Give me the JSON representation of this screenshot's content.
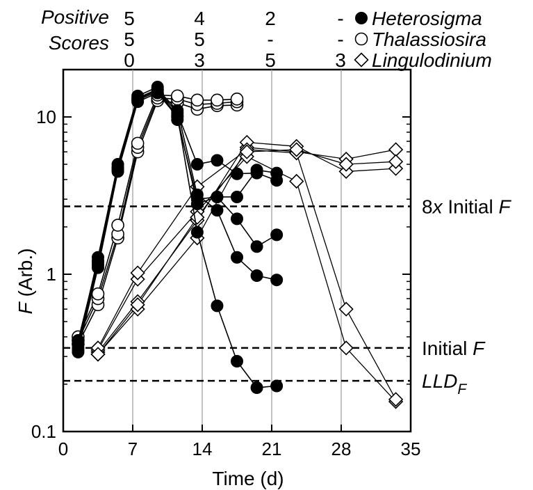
{
  "chart_data": {
    "type": "scatter",
    "y_scale": "log",
    "xlabel": "Time (d)",
    "ylabel": {
      "italic_part": "F",
      "rest": " (Arb.)"
    },
    "xlim": [
      0,
      35
    ],
    "ylim": [
      0.1,
      20
    ],
    "x_ticks": [
      0,
      7,
      14,
      21,
      28,
      35
    ],
    "y_ticks": [
      0.1,
      1,
      10
    ],
    "y_tick_labels": [
      "0.1",
      "1",
      "10"
    ],
    "vertical_gridlines": [
      7,
      14,
      21,
      28
    ],
    "reference_lines": [
      {
        "value": 2.7,
        "label_parts": [
          "8",
          "x",
          " Initial ",
          "F"
        ]
      },
      {
        "value": 0.34,
        "label_parts": [
          "Initial ",
          "F"
        ]
      },
      {
        "value": 0.21,
        "label_parts": [
          "LLD",
          "F"
        ]
      }
    ],
    "scores_header": [
      "Positive",
      "Scores"
    ],
    "legend": [
      {
        "name": "Heterosigma",
        "marker": "filled-circle",
        "scores": [
          "5",
          "4",
          "2",
          "-"
        ]
      },
      {
        "name": "Thalassiosira",
        "marker": "open-circle",
        "scores": [
          "5",
          "5",
          "-",
          "-"
        ]
      },
      {
        "name": "Lingulodinium",
        "marker": "open-diamond",
        "scores": [
          "0",
          "3",
          "5",
          "3"
        ]
      }
    ],
    "series": [
      {
        "name": "Heterosigma",
        "marker": "filled-circle",
        "replicates": [
          [
            [
              1.5,
              0.32
            ],
            [
              3.5,
              1.15
            ],
            [
              5.5,
              4.6
            ],
            [
              7.5,
              12.8
            ],
            [
              9.5,
              14.5
            ],
            [
              11.5,
              10.2
            ],
            [
              13.5,
              1.85
            ],
            [
              15.5,
              0.63
            ],
            [
              17.5,
              0.28
            ],
            [
              19.5,
              0.19
            ],
            [
              21.5,
              0.195
            ]
          ],
          [
            [
              1.5,
              0.34
            ],
            [
              3.5,
              1.2
            ],
            [
              5.5,
              4.8
            ],
            [
              7.5,
              13.2
            ],
            [
              9.5,
              15.0
            ],
            [
              11.5,
              11.0
            ],
            [
              13.5,
              3.2
            ],
            [
              15.5,
              2.55
            ],
            [
              17.5,
              1.28
            ],
            [
              19.5,
              0.98
            ],
            [
              21.5,
              0.92
            ]
          ],
          [
            [
              1.5,
              0.36
            ],
            [
              3.5,
              1.28
            ],
            [
              5.5,
              5.0
            ],
            [
              7.5,
              13.6
            ],
            [
              9.5,
              15.5
            ],
            [
              11.5,
              9.6
            ],
            [
              13.5,
              3.0
            ],
            [
              15.5,
              3.1
            ],
            [
              17.5,
              2.25
            ],
            [
              19.5,
              1.5
            ],
            [
              21.5,
              1.78
            ]
          ],
          [
            [
              1.5,
              0.38
            ],
            [
              3.5,
              1.22
            ],
            [
              5.5,
              4.7
            ],
            [
              7.5,
              13.0
            ],
            [
              9.5,
              14.8
            ],
            [
              11.5,
              10.6
            ],
            [
              13.5,
              5.0
            ],
            [
              15.5,
              5.3
            ],
            [
              17.5,
              4.35
            ],
            [
              19.5,
              4.4
            ],
            [
              21.5,
              3.95
            ]
          ],
          [
            [
              1.5,
              0.33
            ],
            [
              3.5,
              1.1
            ],
            [
              5.5,
              4.5
            ],
            [
              7.5,
              12.5
            ],
            [
              9.5,
              14.2
            ],
            [
              11.5,
              10.0
            ],
            [
              13.5,
              2.8
            ],
            [
              15.5,
              3.1
            ],
            [
              17.5,
              3.1
            ],
            [
              19.5,
              4.6
            ],
            [
              21.5,
              4.4
            ]
          ]
        ]
      },
      {
        "name": "Thalassiosira",
        "marker": "open-circle",
        "replicates": [
          [
            [
              1.5,
              0.36
            ],
            [
              3.5,
              0.64
            ],
            [
              5.5,
              1.7
            ],
            [
              7.5,
              6.0
            ],
            [
              9.5,
              12.7
            ],
            [
              11.5,
              12.3
            ],
            [
              13.5,
              11.2
            ],
            [
              15.5,
              11.8
            ],
            [
              17.5,
              11.9
            ]
          ],
          [
            [
              1.5,
              0.38
            ],
            [
              3.5,
              0.7
            ],
            [
              5.5,
              1.8
            ],
            [
              7.5,
              6.4
            ],
            [
              9.5,
              13.2
            ],
            [
              11.5,
              13.0
            ],
            [
              13.5,
              12.0
            ],
            [
              15.5,
              12.2
            ],
            [
              17.5,
              12.5
            ]
          ],
          [
            [
              1.5,
              0.4
            ],
            [
              3.5,
              0.75
            ],
            [
              5.5,
              2.05
            ],
            [
              7.5,
              6.8
            ],
            [
              9.5,
              13.8
            ],
            [
              11.5,
              13.6
            ],
            [
              13.5,
              12.8
            ],
            [
              15.5,
              12.8
            ],
            [
              17.5,
              13.0
            ]
          ]
        ]
      },
      {
        "name": "Lingulodinium",
        "marker": "open-diamond",
        "replicates": [
          [
            [
              3.5,
              0.31
            ],
            [
              7.5,
              0.6
            ],
            [
              13.5,
              1.7
            ],
            [
              18.5,
              6.4
            ],
            [
              23.5,
              6.0
            ],
            [
              28.5,
              5.4
            ],
            [
              33.5,
              6.2
            ]
          ],
          [
            [
              3.5,
              0.32
            ],
            [
              7.5,
              0.67
            ],
            [
              13.5,
              2.2
            ],
            [
              18.5,
              6.9
            ],
            [
              23.5,
              6.5
            ],
            [
              28.5,
              4.5
            ],
            [
              33.5,
              4.7
            ]
          ],
          [
            [
              3.5,
              0.33
            ],
            [
              7.5,
              0.93
            ],
            [
              13.5,
              2.5
            ],
            [
              18.5,
              5.6
            ],
            [
              23.5,
              3.9
            ],
            [
              28.5,
              0.34
            ],
            [
              33.5,
              0.155
            ]
          ],
          [
            [
              3.5,
              0.34
            ],
            [
              7.5,
              1.02
            ],
            [
              13.5,
              3.6
            ],
            [
              18.5,
              6.2
            ],
            [
              23.5,
              5.9
            ],
            [
              28.5,
              0.6
            ],
            [
              33.5,
              0.16
            ]
          ],
          [
            [
              3.5,
              0.31
            ],
            [
              7.5,
              0.64
            ],
            [
              13.5,
              2.3
            ],
            [
              18.5,
              6.0
            ],
            [
              23.5,
              6.2
            ],
            [
              28.5,
              5.0
            ],
            [
              33.5,
              5.2
            ]
          ]
        ]
      }
    ]
  }
}
